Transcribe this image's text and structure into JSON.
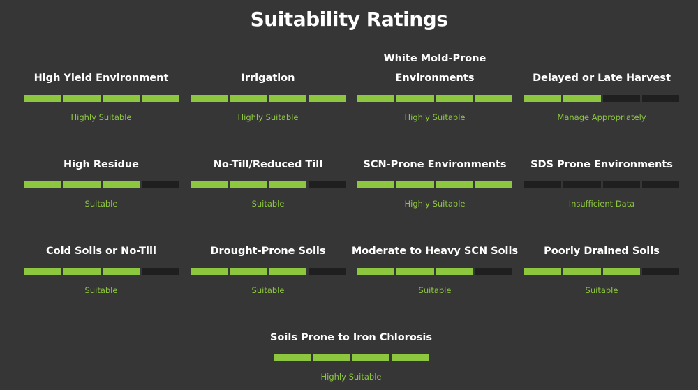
{
  "page_title": "Suitability Ratings",
  "colors": {
    "filled": "#8dc63f",
    "empty": "#1f1f1f",
    "background": "#363636"
  },
  "items": [
    {
      "title": "High Yield Environment",
      "level": 4,
      "max": 4,
      "rating": "Highly Suitable"
    },
    {
      "title": "Irrigation",
      "level": 4,
      "max": 4,
      "rating": "Highly Suitable"
    },
    {
      "title": "White Mold-Prone Environments",
      "level": 4,
      "max": 4,
      "rating": "Highly Suitable"
    },
    {
      "title": "Delayed or Late Harvest",
      "level": 2,
      "max": 4,
      "rating": "Manage Appropriately"
    },
    {
      "title": "High Residue",
      "level": 3,
      "max": 4,
      "rating": "Suitable"
    },
    {
      "title": "No-Till/Reduced Till",
      "level": 3,
      "max": 4,
      "rating": "Suitable"
    },
    {
      "title": "SCN-Prone Environments",
      "level": 4,
      "max": 4,
      "rating": "Highly Suitable"
    },
    {
      "title": "SDS Prone Environments",
      "level": 0,
      "max": 4,
      "rating": "Insufficient Data"
    },
    {
      "title": "Cold Soils or No-Till",
      "level": 3,
      "max": 4,
      "rating": "Suitable"
    },
    {
      "title": "Drought-Prone Soils",
      "level": 3,
      "max": 4,
      "rating": "Suitable"
    },
    {
      "title": "Moderate to Heavy SCN Soils",
      "level": 3,
      "max": 4,
      "rating": "Suitable"
    },
    {
      "title": "Poorly Drained Soils",
      "level": 3,
      "max": 4,
      "rating": "Suitable"
    },
    {
      "title": "Soils Prone to Iron Chlorosis",
      "level": 4,
      "max": 4,
      "rating": "Highly Suitable"
    }
  ]
}
